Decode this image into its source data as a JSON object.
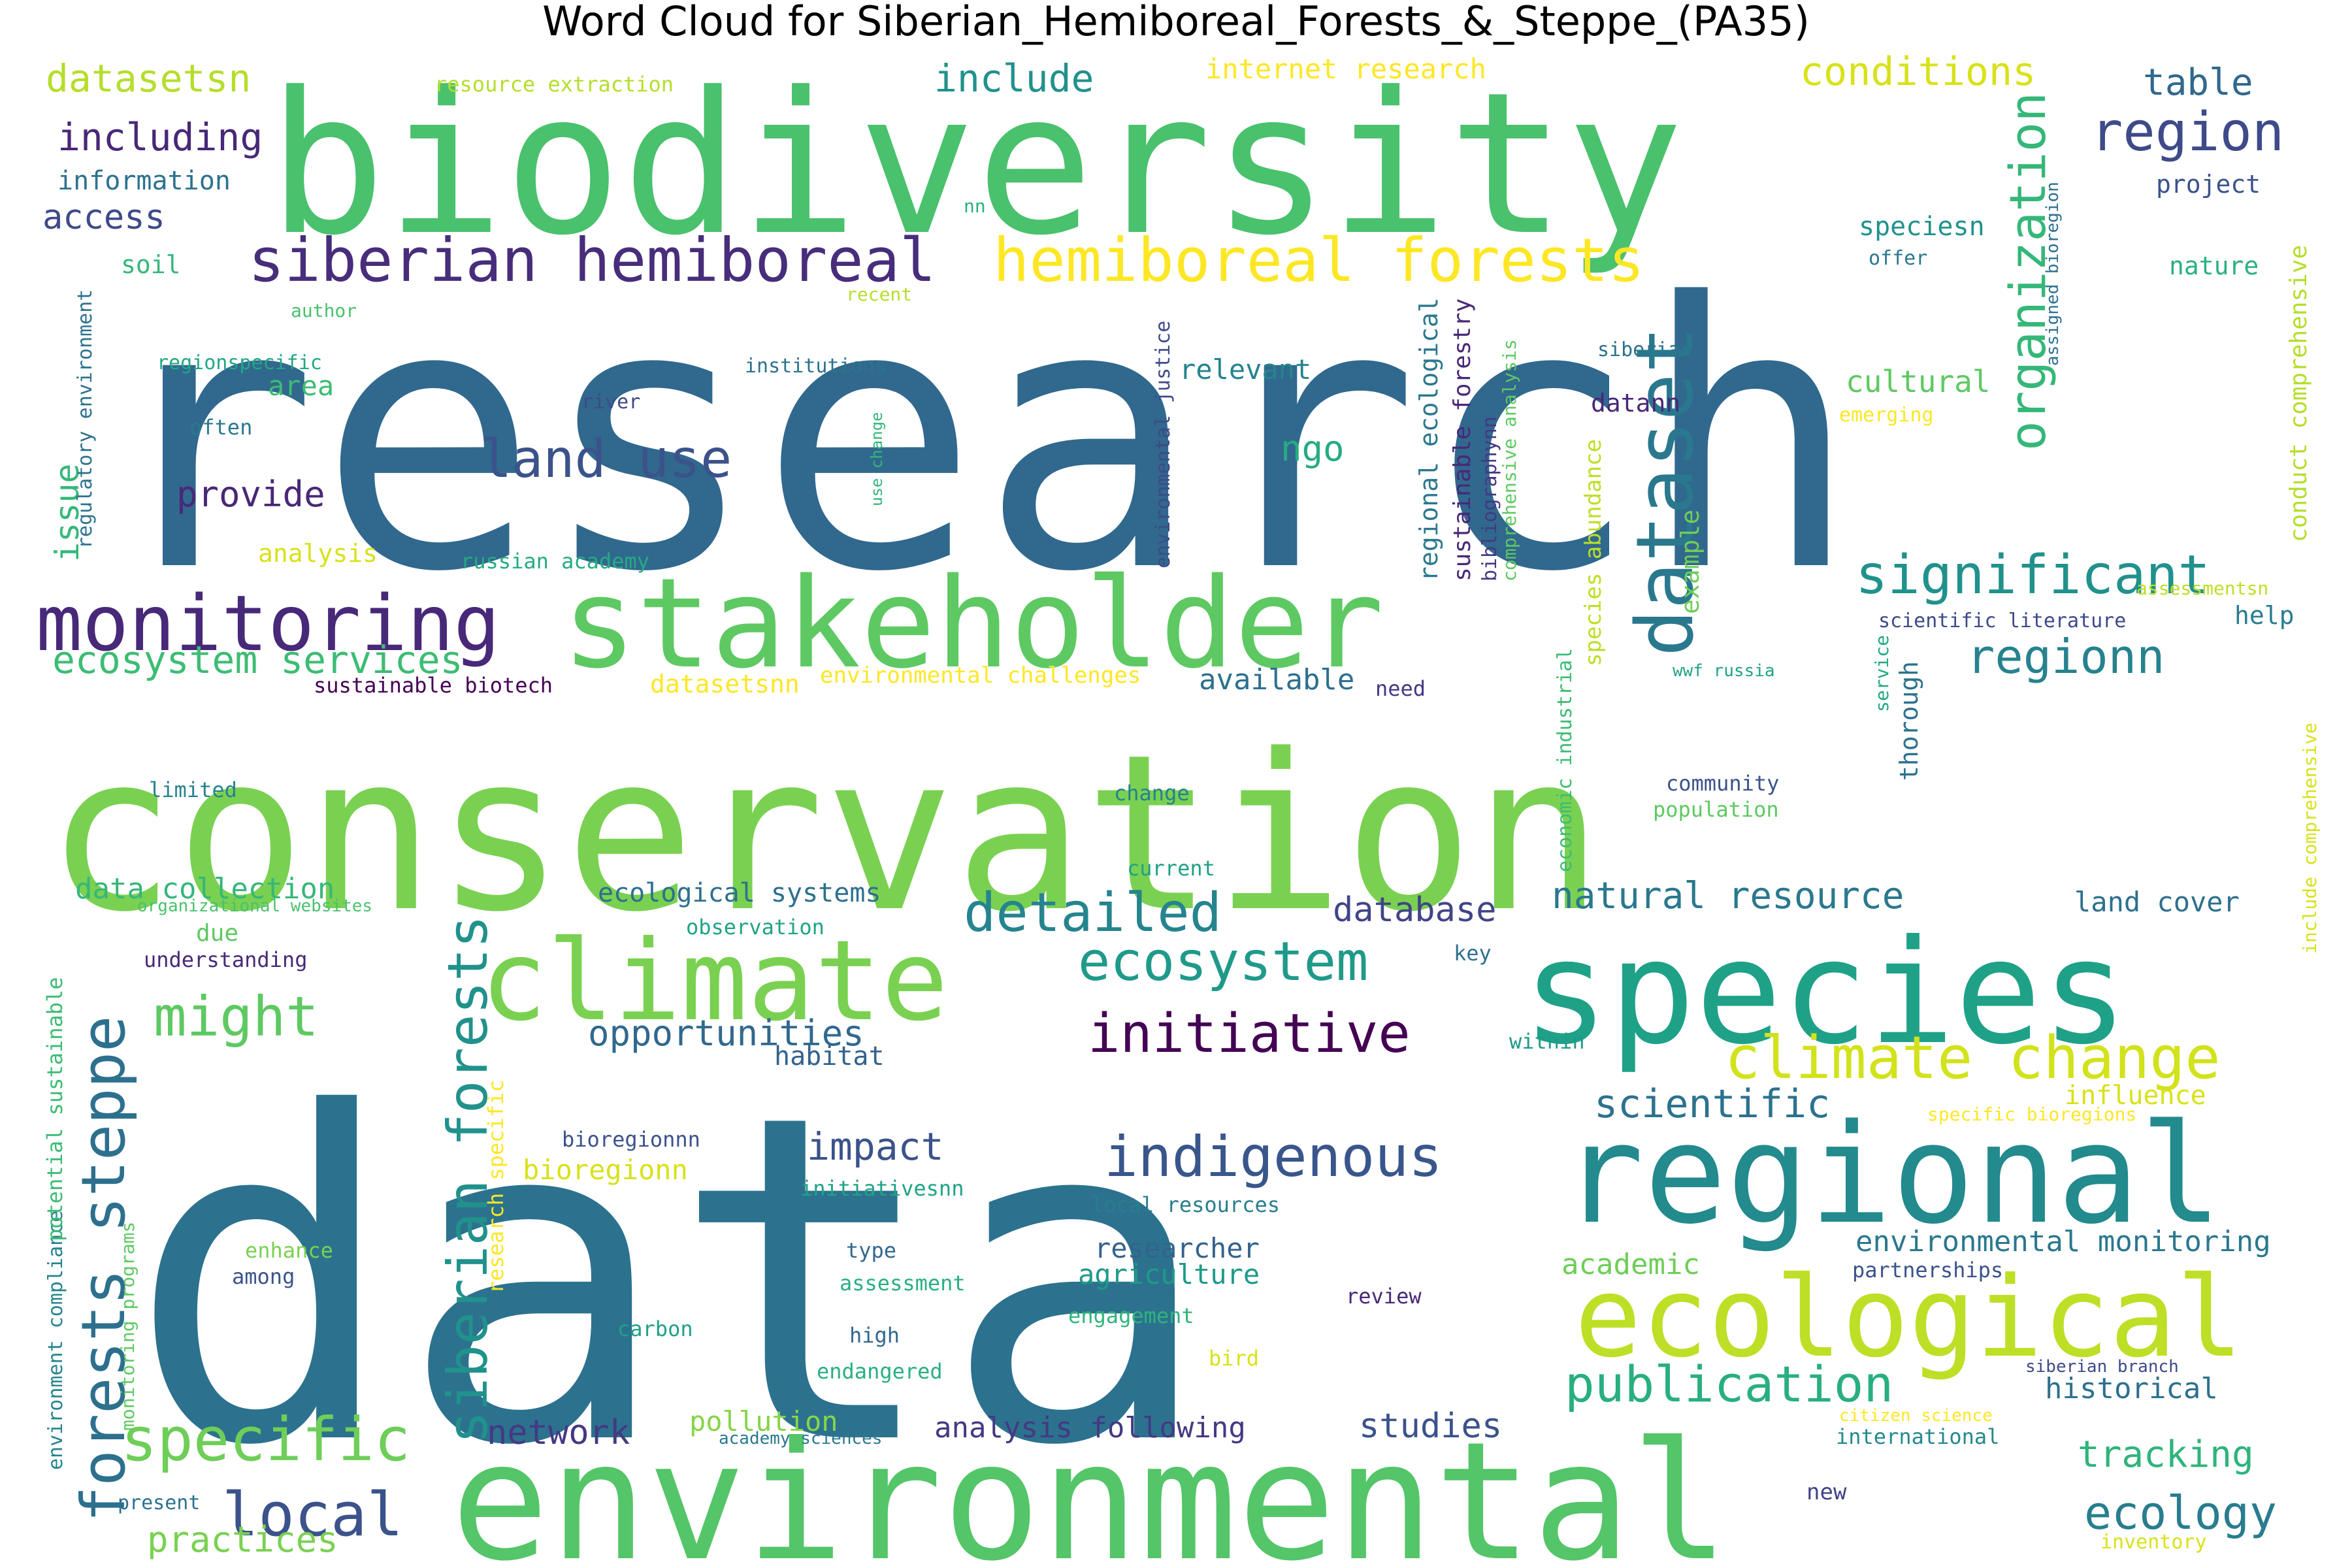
{
  "title": "Word Cloud for Siberian_Hemiboreal_Forests_&_Steppe_(PA35)",
  "words": [
    {
      "text": "research",
      "color": "#31688e",
      "weight": 130
    },
    {
      "text": "data",
      "color": "#2c728e",
      "weight": 130
    },
    {
      "text": "conservation",
      "color": "#7ad151",
      "weight": 110
    },
    {
      "text": "biodiversity",
      "color": "#4ac16d",
      "weight": 90
    },
    {
      "text": "environmental",
      "color": "#54c568",
      "weight": 75
    },
    {
      "text": "species",
      "color": "#1fa188",
      "weight": 70
    },
    {
      "text": "stakeholder",
      "color": "#5ec962",
      "weight": 60
    },
    {
      "text": "regional",
      "color": "#238a8d",
      "weight": 58
    },
    {
      "text": "climate",
      "color": "#7ad151",
      "weight": 52
    },
    {
      "text": "ecological",
      "color": "#bddf26",
      "weight": 50
    },
    {
      "text": "dataset",
      "color": "#2a788e",
      "weight": 42
    },
    {
      "text": "monitoring",
      "color": "#482878",
      "weight": 40
    },
    {
      "text": "hemiboreal forests",
      "color": "#fde725",
      "weight": 36
    },
    {
      "text": "siberian hemiboreal",
      "color": "#472d7b",
      "weight": 32
    },
    {
      "text": "forests steppe",
      "color": "#2d708e",
      "weight": 32
    },
    {
      "text": "climate change",
      "color": "#d2e21b",
      "weight": 32
    },
    {
      "text": "siberian forests",
      "color": "#21918c",
      "weight": 30
    },
    {
      "text": "indigenous",
      "color": "#39568c",
      "weight": 30
    },
    {
      "text": "specific",
      "color": "#6ece58",
      "weight": 30
    },
    {
      "text": "significant",
      "color": "#21918c",
      "weight": 28
    },
    {
      "text": "ecosystem",
      "color": "#1f9a8a",
      "weight": 28
    },
    {
      "text": "region",
      "color": "#3e4a89",
      "weight": 28
    },
    {
      "text": "organization",
      "color": "#35b779",
      "weight": 28
    },
    {
      "text": "detailed",
      "color": "#25848e",
      "weight": 28
    },
    {
      "text": "might",
      "color": "#5ec962",
      "weight": 26
    },
    {
      "text": "land use",
      "color": "#3b528b",
      "weight": 26
    },
    {
      "text": "local",
      "color": "#3b528b",
      "weight": 26
    },
    {
      "text": "initiative",
      "color": "#440154",
      "weight": 26
    },
    {
      "text": "publication",
      "color": "#29af7f",
      "weight": 26
    },
    {
      "text": "ecology",
      "color": "#287d8e",
      "weight": 24
    },
    {
      "text": "regionn",
      "color": "#26828e",
      "weight": 24
    },
    {
      "text": "natural resource",
      "color": "#2a788e",
      "weight": 20
    },
    {
      "text": "opportunities",
      "color": "#31688e",
      "weight": 20
    },
    {
      "text": "scientific",
      "color": "#2c728e",
      "weight": 20
    },
    {
      "text": "impact",
      "color": "#3b528b",
      "weight": 20
    },
    {
      "text": "ecosystem services",
      "color": "#3dbc74",
      "weight": 20
    },
    {
      "text": "conditions",
      "color": "#d8e219",
      "weight": 20
    },
    {
      "text": "table",
      "color": "#31688e",
      "weight": 20
    },
    {
      "text": "include",
      "color": "#21918c",
      "weight": 20
    },
    {
      "text": "datasetsn",
      "color": "#b5de2b",
      "weight": 20
    },
    {
      "text": "including",
      "color": "#482878",
      "weight": 20
    },
    {
      "text": "tracking",
      "color": "#2fb47c",
      "weight": 20
    },
    {
      "text": "network",
      "color": "#443983",
      "weight": 18
    },
    {
      "text": "studies",
      "color": "#3b528b",
      "weight": 18
    },
    {
      "text": "practices",
      "color": "#7ad151",
      "weight": 18
    },
    {
      "text": "provide",
      "color": "#482878",
      "weight": 18
    },
    {
      "text": "database",
      "color": "#414487",
      "weight": 18
    },
    {
      "text": "ngo",
      "color": "#25ab82",
      "weight": 18
    },
    {
      "text": "issue",
      "color": "#35b779",
      "weight": 16
    },
    {
      "text": "access",
      "color": "#3e4a89",
      "weight": 16
    },
    {
      "text": "cultural",
      "color": "#5ec962",
      "weight": 14
    },
    {
      "text": "data collection",
      "color": "#35b779",
      "weight": 14
    },
    {
      "text": "ecological systems",
      "color": "#2d708e",
      "weight": 14
    },
    {
      "text": "analysis following",
      "color": "#443983",
      "weight": 14
    },
    {
      "text": "available",
      "color": "#2d708e",
      "weight": 14
    },
    {
      "text": "environmental monitoring",
      "color": "#2a788e",
      "weight": 14
    },
    {
      "text": "information",
      "color": "#2c728e",
      "weight": 13
    },
    {
      "text": "internet research",
      "color": "#fde725",
      "weight": 13
    },
    {
      "text": "researcher",
      "color": "#33638d",
      "weight": 13
    },
    {
      "text": "agriculture",
      "color": "#1f9a8a",
      "weight": 13
    },
    {
      "text": "academic",
      "color": "#6ece58",
      "weight": 13
    },
    {
      "text": "pollution",
      "color": "#86d549",
      "weight": 13
    },
    {
      "text": "historical",
      "color": "#2d708e",
      "weight": 13
    },
    {
      "text": "land cover",
      "color": "#2d708e",
      "weight": 13
    },
    {
      "text": "influence",
      "color": "#d8e219",
      "weight": 13
    },
    {
      "text": "relevant",
      "color": "#25848e",
      "weight": 13
    },
    {
      "text": "habitat",
      "color": "#33638d",
      "weight": 13
    },
    {
      "text": "area",
      "color": "#3dbc74",
      "weight": 13
    },
    {
      "text": "bioregionn",
      "color": "#d8e219",
      "weight": 13
    },
    {
      "text": "nature",
      "color": "#2ab07f",
      "weight": 12
    },
    {
      "text": "project",
      "color": "#3b528b",
      "weight": 12
    },
    {
      "text": "help",
      "color": "#287d8e",
      "weight": 12
    },
    {
      "text": "due",
      "color": "#5ec962",
      "weight": 12
    },
    {
      "text": "datann",
      "color": "#482878",
      "weight": 12
    },
    {
      "text": "speciesn",
      "color": "#21918c",
      "weight": 12
    },
    {
      "text": "example",
      "color": "#6ece58",
      "weight": 12
    },
    {
      "text": "thorough",
      "color": "#2c728e",
      "weight": 12
    },
    {
      "text": "analysis",
      "color": "#d8e219",
      "weight": 12
    },
    {
      "text": "datasetsnn",
      "color": "#fde725",
      "weight": 12
    },
    {
      "text": "soil",
      "color": "#35b779",
      "weight": 11
    },
    {
      "text": "russian academy",
      "color": "#25ab82",
      "weight": 11
    },
    {
      "text": "resource extraction",
      "color": "#b5de2b",
      "weight": 11
    },
    {
      "text": "often",
      "color": "#2a788e",
      "weight": 11
    },
    {
      "text": "understanding",
      "color": "#482878",
      "weight": 11
    },
    {
      "text": "among",
      "color": "#3b528b",
      "weight": 11
    },
    {
      "text": "enhance",
      "color": "#7ad151",
      "weight": 11
    },
    {
      "text": "limited",
      "color": "#26828e",
      "weight": 11
    },
    {
      "text": "type",
      "color": "#31688e",
      "weight": 11
    },
    {
      "text": "assessment",
      "color": "#29af7f",
      "weight": 11
    },
    {
      "text": "high",
      "color": "#31688e",
      "weight": 11
    },
    {
      "text": "carbon",
      "color": "#1fa188",
      "weight": 11
    },
    {
      "text": "endangered",
      "color": "#29af7f",
      "weight": 11
    },
    {
      "text": "engagement",
      "color": "#2fb47c",
      "weight": 11
    },
    {
      "text": "bird",
      "color": "#d8e219",
      "weight": 11
    },
    {
      "text": "review",
      "color": "#482878",
      "weight": 11
    },
    {
      "text": "change",
      "color": "#26828e",
      "weight": 11
    },
    {
      "text": "current",
      "color": "#1fa188",
      "weight": 11
    },
    {
      "text": "observation",
      "color": "#20a386",
      "weight": 11
    },
    {
      "text": "local resources",
      "color": "#287d8e",
      "weight": 11
    },
    {
      "text": "initiativesnn",
      "color": "#20a386",
      "weight": 11
    },
    {
      "text": "bioregionnn",
      "color": "#3b528b",
      "weight": 11
    },
    {
      "text": "community",
      "color": "#3b528b",
      "weight": 11
    },
    {
      "text": "population",
      "color": "#5ec962",
      "weight": 11
    },
    {
      "text": "key",
      "color": "#2c728e",
      "weight": 11
    },
    {
      "text": "within",
      "color": "#1f9a8a",
      "weight": 11
    },
    {
      "text": "need",
      "color": "#443983",
      "weight": 11
    },
    {
      "text": "partnerships",
      "color": "#3b528b",
      "weight": 11
    },
    {
      "text": "international",
      "color": "#23898e",
      "weight": 11
    },
    {
      "text": "new",
      "color": "#414487",
      "weight": 11
    },
    {
      "text": "present",
      "color": "#2c728e",
      "weight": 10
    },
    {
      "text": "inventory",
      "color": "#d8e219",
      "weight": 10
    },
    {
      "text": "author",
      "color": "#4ac16d",
      "weight": 10
    },
    {
      "text": "recent",
      "color": "#b5de2b",
      "weight": 10
    },
    {
      "text": "institutions",
      "color": "#2c728e",
      "weight": 10
    },
    {
      "text": "river",
      "color": "#3e4a89",
      "weight": 10
    },
    {
      "text": "nn",
      "color": "#2ab07f",
      "weight": 10
    },
    {
      "text": "regionspecific",
      "color": "#22a884",
      "weight": 10
    },
    {
      "text": "offer",
      "color": "#2a788e",
      "weight": 10
    },
    {
      "text": "siberian",
      "color": "#2c728e",
      "weight": 10
    },
    {
      "text": "emerging",
      "color": "#fde725",
      "weight": 10
    },
    {
      "text": "scientific literature",
      "color": "#3e4a89",
      "weight": 10
    },
    {
      "text": "assessmentsn",
      "color": "#bddf26",
      "weight": 10
    },
    {
      "text": "wwf russia",
      "color": "#20a386",
      "weight": 10
    },
    {
      "text": "sustainable biotech",
      "color": "#440154",
      "weight": 10
    },
    {
      "text": "environmental challenges",
      "color": "#fde725",
      "weight": 10
    },
    {
      "text": "organizational websites",
      "color": "#4ac16d",
      "weight": 9
    },
    {
      "text": "academy sciences",
      "color": "#2a788e",
      "weight": 9
    },
    {
      "text": "specific bioregions",
      "color": "#fde725",
      "weight": 9
    },
    {
      "text": "citizen science",
      "color": "#fde725",
      "weight": 9
    },
    {
      "text": "siberian branch",
      "color": "#3e4a89",
      "weight": 9
    },
    {
      "text": "regulatory environment",
      "color": "#2c728e",
      "weight": 10
    },
    {
      "text": "environmental justice",
      "color": "#3e4a89",
      "weight": 10
    },
    {
      "text": "use change",
      "color": "#35b779",
      "weight": 9
    },
    {
      "text": "regional ecological",
      "color": "#2a788e",
      "weight": 12
    },
    {
      "text": "sustainable forestry",
      "color": "#482878",
      "weight": 12
    },
    {
      "text": "bibliographynn",
      "color": "#443983",
      "weight": 11
    },
    {
      "text": "comprehensive analysis",
      "color": "#5ec962",
      "weight": 10
    },
    {
      "text": "species abundance",
      "color": "#bddf26",
      "weight": 12
    },
    {
      "text": "economic industrial",
      "color": "#3dbc74",
      "weight": 10
    },
    {
      "text": "service",
      "color": "#22a884",
      "weight": 10
    },
    {
      "text": "assigned bioregion",
      "color": "#2d708e",
      "weight": 9
    },
    {
      "text": "conduct comprehensive",
      "color": "#b5de2b",
      "weight": 12
    },
    {
      "text": "include comprehensive",
      "color": "#d8e219",
      "weight": 10
    },
    {
      "text": "environment compliance",
      "color": "#25848e",
      "weight": 10
    },
    {
      "text": "potential sustainable",
      "color": "#3dbc74",
      "weight": 10
    },
    {
      "text": "monitoring programs",
      "color": "#5ec962",
      "weight": 10
    },
    {
      "text": "research specific",
      "color": "#fde725",
      "weight": 11
    }
  ]
}
